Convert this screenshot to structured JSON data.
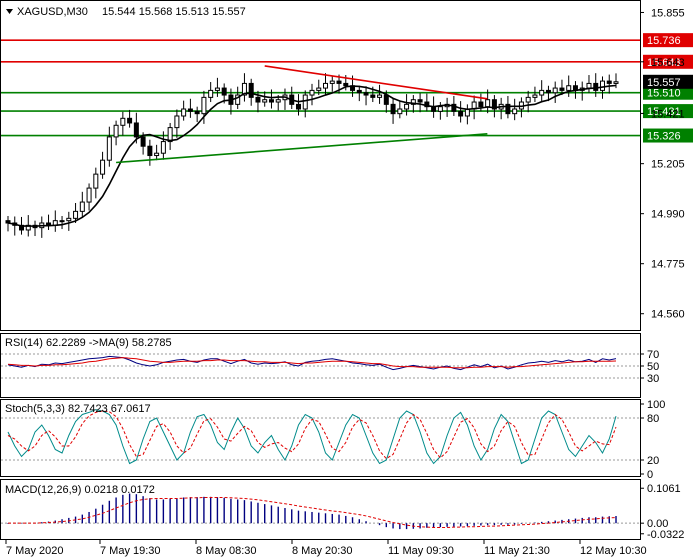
{
  "header": {
    "symbol": "XAGUSD,M30",
    "ohlc": "15.544 15.568 15.513 15.557"
  },
  "rsi_label": "RSI(14) 62.2289 ->MA(9) 58.2785",
  "stoch_label": "Stoch(5,3,3) 82.7423 67.0617",
  "macd_label": "MACD(12,26,9) 0.0218 0.0172",
  "colors": {
    "candle": "#000000",
    "ma": "#000000",
    "resistance": "#e00000",
    "support": "#008000",
    "current_price_bg": "#000000",
    "rsi_line": "#000080",
    "rsi_ma": "#e00000",
    "stoch_main": "#008b8b",
    "stoch_signal": "#e00000",
    "macd_hist": "#000080",
    "macd_signal": "#e00000"
  },
  "chart_data": [
    {
      "type": "candlestick",
      "title": "XAGUSD,M30",
      "y_ticks": [
        "15.855",
        "15.643",
        "15.421",
        "15.205",
        "14.990",
        "14.775",
        "14.560"
      ],
      "ylim": [
        14.49,
        15.9
      ],
      "x_ticks": [
        "7 May 2020",
        "7 May 19:30",
        "8 May 08:30",
        "8 May 20:30",
        "11 May 09:30",
        "11 May 21:30",
        "12 May 10:30"
      ],
      "levels": [
        {
          "value": 15.736,
          "label": "15.736",
          "color": "#e00000"
        },
        {
          "value": 15.643,
          "label": "15.643",
          "color": "#e00000"
        },
        {
          "value": 15.51,
          "label": "15.510",
          "color": "#008000"
        },
        {
          "value": 15.431,
          "label": "15.431",
          "color": "#008000"
        },
        {
          "value": 15.326,
          "label": "15.326",
          "color": "#008000"
        }
      ],
      "current_price": {
        "value": 15.557,
        "label": "15.557"
      },
      "trendlines": [
        {
          "color": "#e00000",
          "points": [
            [
              38,
              15.625
            ],
            [
              68,
              15.49
            ]
          ]
        },
        {
          "color": "#008000",
          "points": [
            [
              16,
              15.21
            ],
            [
              68,
              15.33
            ]
          ]
        }
      ],
      "close": [
        14.95,
        14.94,
        14.92,
        14.94,
        14.93,
        14.95,
        14.94,
        14.96,
        14.96,
        14.97,
        15.0,
        15.04,
        15.1,
        15.16,
        15.22,
        15.32,
        15.37,
        15.4,
        15.38,
        15.32,
        15.28,
        15.24,
        15.25,
        15.3,
        15.36,
        15.41,
        15.44,
        15.43,
        15.42,
        15.49,
        15.52,
        15.53,
        15.5,
        15.46,
        15.5,
        15.55,
        15.49,
        15.47,
        15.48,
        15.47,
        15.48,
        15.5,
        15.46,
        15.44,
        15.5,
        15.52,
        15.53,
        15.55,
        15.56,
        15.55,
        15.54,
        15.52,
        15.51,
        15.5,
        15.49,
        15.5,
        15.46,
        15.42,
        15.44,
        15.46,
        15.48,
        15.47,
        15.45,
        15.43,
        15.45,
        15.46,
        15.43,
        15.41,
        15.44,
        15.47,
        15.45,
        15.48,
        15.44,
        15.46,
        15.42,
        15.44,
        15.47,
        15.49,
        15.5,
        15.52,
        15.51,
        15.53,
        15.52,
        15.54,
        15.52,
        15.53,
        15.55,
        15.52,
        15.56,
        15.55,
        15.557
      ]
    },
    {
      "type": "line",
      "title": "RSI(14) 62.2289 ->MA(9) 58.2785",
      "y_ticks": [
        "70",
        "50",
        "30"
      ],
      "ylim": [
        0,
        100
      ],
      "series": [
        {
          "name": "RSI(14)",
          "color": "#000080",
          "values": [
            52,
            50,
            48,
            51,
            49,
            53,
            52,
            55,
            54,
            56,
            58,
            60,
            62,
            63,
            64,
            66,
            65,
            64,
            60,
            55,
            52,
            50,
            52,
            56,
            58,
            60,
            61,
            58,
            56,
            60,
            62,
            62,
            58,
            54,
            58,
            61,
            55,
            53,
            55,
            54,
            55,
            57,
            52,
            50,
            56,
            58,
            59,
            61,
            62,
            60,
            58,
            55,
            54,
            52,
            51,
            53,
            48,
            44,
            46,
            49,
            51,
            49,
            47,
            45,
            48,
            50,
            46,
            44,
            48,
            52,
            49,
            53,
            47,
            50,
            45,
            48,
            52,
            55,
            56,
            58,
            56,
            59,
            57,
            60,
            57,
            58,
            61,
            56,
            62,
            60,
            62.23
          ]
        },
        {
          "name": "MA(9)",
          "color": "#e00000",
          "values": [
            53,
            52,
            51,
            51,
            50,
            51,
            51,
            52,
            52,
            53,
            54,
            55,
            57,
            58,
            60,
            62,
            63,
            64,
            63,
            62,
            60,
            58,
            57,
            56,
            56,
            57,
            58,
            58,
            58,
            59,
            59,
            60,
            60,
            59,
            59,
            59,
            58,
            57,
            57,
            56,
            56,
            56,
            55,
            54,
            55,
            55,
            56,
            57,
            58,
            58,
            58,
            57,
            56,
            55,
            54,
            54,
            52,
            50,
            49,
            49,
            49,
            48,
            48,
            48,
            48,
            48,
            47,
            47,
            47,
            48,
            48,
            49,
            49,
            49,
            48,
            49,
            49,
            50,
            51,
            52,
            53,
            54,
            55,
            56,
            57,
            57,
            58,
            58,
            58,
            58,
            58.28
          ]
        }
      ]
    },
    {
      "type": "line",
      "title": "Stoch(5,3,3) 82.7423 67.0617",
      "y_ticks": [
        "100",
        "80",
        "20",
        "0"
      ],
      "ylim": [
        0,
        100
      ],
      "series": [
        {
          "name": "Stoch main",
          "color": "#008b8b",
          "values": [
            60,
            40,
            25,
            35,
            60,
            70,
            55,
            35,
            30,
            55,
            75,
            85,
            88,
            92,
            90,
            85,
            70,
            40,
            15,
            20,
            50,
            75,
            80,
            60,
            40,
            20,
            30,
            60,
            82,
            85,
            70,
            45,
            35,
            60,
            80,
            65,
            40,
            30,
            45,
            55,
            35,
            20,
            40,
            70,
            85,
            80,
            60,
            30,
            20,
            45,
            70,
            85,
            80,
            55,
            30,
            15,
            20,
            50,
            80,
            90,
            85,
            60,
            30,
            15,
            25,
            55,
            80,
            88,
            70,
            40,
            20,
            35,
            65,
            85,
            75,
            45,
            15,
            20,
            50,
            80,
            90,
            85,
            60,
            35,
            25,
            40,
            55,
            45,
            30,
            50,
            82.74
          ]
        },
        {
          "name": "Stoch signal",
          "color": "#e00000",
          "values": [
            55,
            50,
            40,
            33,
            40,
            55,
            62,
            53,
            40,
            40,
            53,
            72,
            83,
            88,
            90,
            89,
            82,
            65,
            42,
            25,
            28,
            48,
            68,
            72,
            60,
            40,
            30,
            37,
            57,
            76,
            79,
            67,
            50,
            47,
            58,
            68,
            62,
            45,
            38,
            43,
            45,
            37,
            32,
            43,
            65,
            78,
            75,
            57,
            37,
            32,
            45,
            67,
            78,
            73,
            55,
            33,
            22,
            28,
            50,
            73,
            85,
            78,
            58,
            35,
            23,
            32,
            53,
            74,
            79,
            66,
            43,
            32,
            40,
            62,
            75,
            68,
            45,
            27,
            28,
            50,
            73,
            85,
            78,
            60,
            40,
            33,
            40,
            47,
            43,
            42,
            67.06
          ]
        }
      ]
    },
    {
      "type": "bar",
      "title": "MACD(12,26,9) 0.0218 0.0172",
      "y_ticks": [
        "0.1061",
        "0.00",
        "-0.0322"
      ],
      "ylim": [
        -0.045,
        0.125
      ],
      "series": [
        {
          "name": "MACD",
          "color": "#000080",
          "values": [
            -0.002,
            -0.001,
            -0.001,
            0.0,
            0.001,
            0.003,
            0.005,
            0.008,
            0.012,
            0.016,
            0.02,
            0.026,
            0.034,
            0.044,
            0.056,
            0.068,
            0.078,
            0.086,
            0.09,
            0.088,
            0.082,
            0.076,
            0.072,
            0.072,
            0.074,
            0.076,
            0.078,
            0.079,
            0.079,
            0.08,
            0.08,
            0.079,
            0.077,
            0.074,
            0.072,
            0.07,
            0.066,
            0.062,
            0.058,
            0.054,
            0.05,
            0.046,
            0.042,
            0.038,
            0.036,
            0.034,
            0.032,
            0.03,
            0.028,
            0.026,
            0.022,
            0.018,
            0.012,
            0.006,
            0.0,
            -0.006,
            -0.012,
            -0.016,
            -0.018,
            -0.018,
            -0.017,
            -0.016,
            -0.014,
            -0.013,
            -0.012,
            -0.011,
            -0.011,
            -0.01,
            -0.009,
            -0.008,
            -0.007,
            -0.006,
            -0.006,
            -0.005,
            -0.005,
            -0.004,
            -0.002,
            0.0,
            0.002,
            0.004,
            0.006,
            0.008,
            0.01,
            0.012,
            0.014,
            0.016,
            0.018,
            0.018,
            0.02,
            0.021,
            0.0218
          ]
        },
        {
          "name": "Signal",
          "color": "#e00000",
          "values": [
            0.0,
            0.0,
            0.0,
            0.0,
            0.0,
            0.001,
            0.002,
            0.003,
            0.005,
            0.007,
            0.01,
            0.013,
            0.018,
            0.024,
            0.03,
            0.038,
            0.046,
            0.054,
            0.062,
            0.068,
            0.072,
            0.074,
            0.075,
            0.075,
            0.075,
            0.075,
            0.076,
            0.077,
            0.077,
            0.078,
            0.078,
            0.078,
            0.078,
            0.077,
            0.076,
            0.075,
            0.073,
            0.071,
            0.068,
            0.065,
            0.062,
            0.059,
            0.056,
            0.052,
            0.049,
            0.046,
            0.043,
            0.04,
            0.037,
            0.035,
            0.032,
            0.029,
            0.026,
            0.022,
            0.017,
            0.012,
            0.007,
            0.002,
            -0.002,
            -0.006,
            -0.009,
            -0.011,
            -0.012,
            -0.013,
            -0.013,
            -0.013,
            -0.012,
            -0.012,
            -0.011,
            -0.011,
            -0.01,
            -0.009,
            -0.009,
            -0.008,
            -0.007,
            -0.006,
            -0.005,
            -0.004,
            -0.003,
            -0.001,
            0.0,
            0.002,
            0.004,
            0.006,
            0.008,
            0.01,
            0.012,
            0.013,
            0.015,
            0.016,
            0.0172
          ]
        }
      ]
    }
  ]
}
